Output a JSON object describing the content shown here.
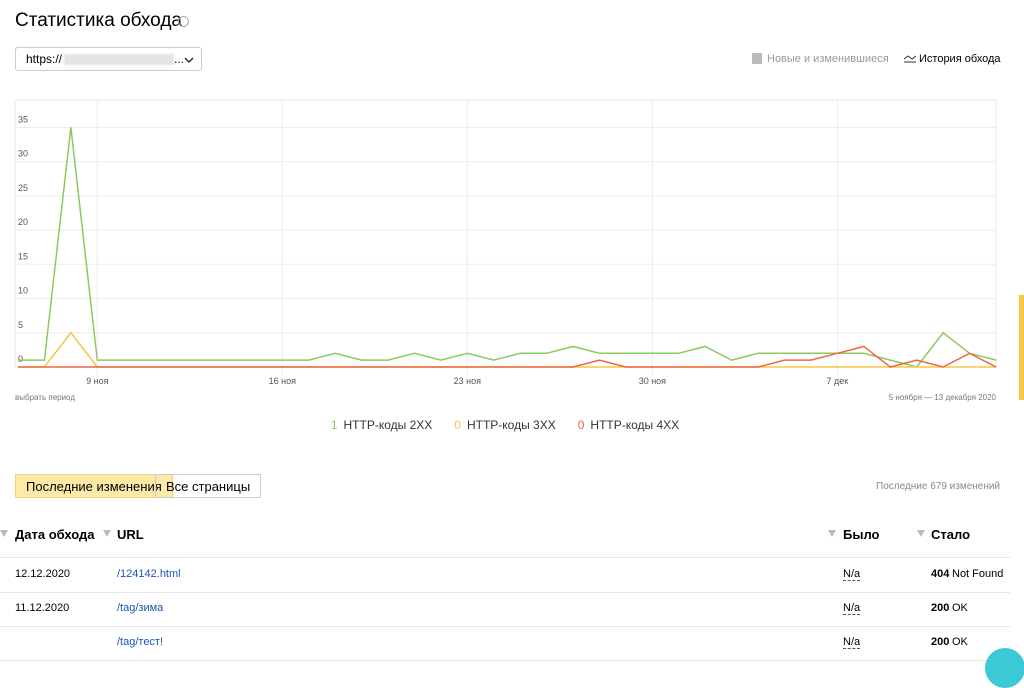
{
  "header": {
    "title": "Статистика обхода"
  },
  "site_select": {
    "prefix": "https://",
    "suffix": "..."
  },
  "view_toggle": {
    "new_changed": "Новые и изменившиеся",
    "history": "История обхода"
  },
  "chart_data": {
    "type": "line",
    "categories": [
      null,
      null,
      null,
      "9 ноя",
      null,
      null,
      null,
      null,
      null,
      null,
      "16 ноя",
      null,
      null,
      null,
      null,
      null,
      null,
      "23 ноя",
      null,
      null,
      null,
      null,
      null,
      null,
      "30 ноя",
      null,
      null,
      null,
      null,
      null,
      null,
      "7 дек",
      null,
      null,
      null,
      null,
      null,
      null
    ],
    "series": [
      {
        "name": "HTTP-коды 2XX",
        "color": "#8fc862",
        "last": 1,
        "values": [
          1,
          1,
          35,
          1,
          1,
          1,
          1,
          1,
          1,
          1,
          1,
          1,
          2,
          1,
          1,
          2,
          1,
          2,
          1,
          2,
          2,
          3,
          2,
          2,
          2,
          2,
          3,
          1,
          2,
          2,
          2,
          2,
          2,
          1,
          0,
          5,
          2,
          1
        ]
      },
      {
        "name": "HTTP-коды 3XX",
        "color": "#f6c744",
        "last": 0,
        "values": [
          0,
          0,
          5,
          0,
          0,
          0,
          0,
          0,
          0,
          0,
          0,
          0,
          0,
          0,
          0,
          0,
          0,
          0,
          0,
          0,
          0,
          0,
          0,
          0,
          0,
          0,
          0,
          0,
          0,
          0,
          0,
          0,
          0,
          0,
          0,
          0,
          0,
          0
        ]
      },
      {
        "name": "HTTP-коды 4XX",
        "color": "#ee6547",
        "last": 0,
        "values": [
          0,
          0,
          0,
          0,
          0,
          0,
          0,
          0,
          0,
          0,
          0,
          0,
          0,
          0,
          0,
          0,
          0,
          0,
          0,
          0,
          0,
          0,
          1,
          0,
          0,
          0,
          0,
          0,
          0,
          1,
          1,
          2,
          3,
          0,
          1,
          0,
          2,
          0
        ]
      }
    ],
    "ylim": [
      0,
      39
    ],
    "yticks": [
      0,
      5,
      10,
      15,
      20,
      25,
      30,
      35
    ],
    "grid": true,
    "period_link": "выбрать период",
    "period": "5 ноября — 13 декабря 2020"
  },
  "tabs": {
    "recent": "Последние изменения",
    "all": "Все страницы",
    "count_note": "Последние 679 изменений"
  },
  "table": {
    "headers": {
      "date": "Дата обхода",
      "url": "URL",
      "before": "Было",
      "after": "Стало"
    },
    "rows": [
      {
        "date": "12.12.2020",
        "url": "/124142.html",
        "before": "N/a",
        "code": 404,
        "status": "Not Found"
      },
      {
        "date": "11.12.2020",
        "url": "/tag/зима",
        "before": "N/a",
        "code": 200,
        "status": "OK"
      },
      {
        "date": null,
        "url": "/tag/тест!",
        "before": "N/a",
        "code": 200,
        "status": "OK"
      }
    ]
  }
}
